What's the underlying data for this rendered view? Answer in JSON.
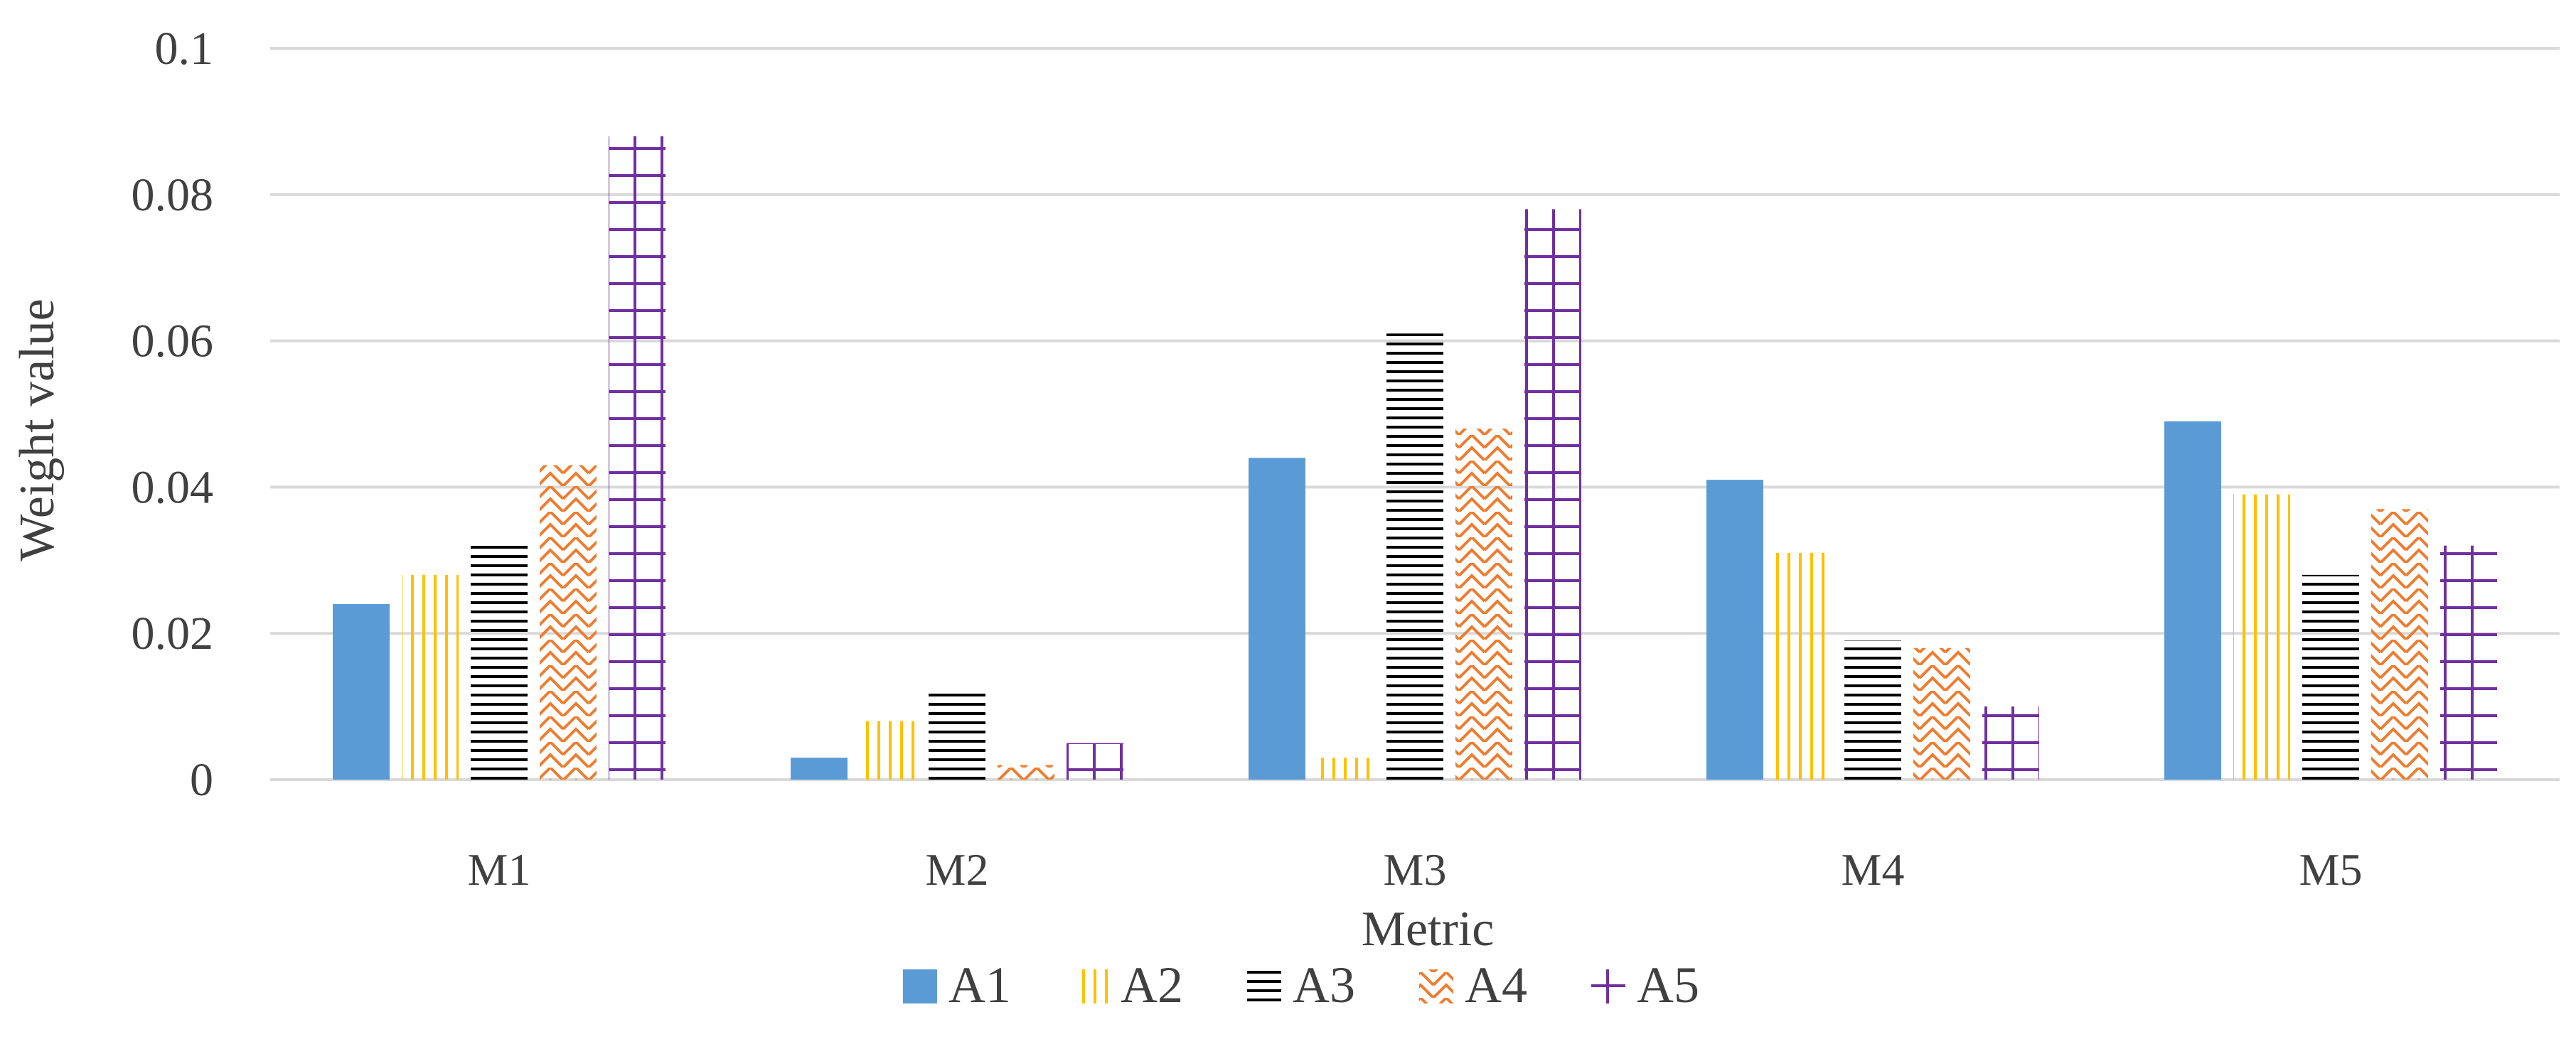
{
  "chart_data": {
    "type": "bar",
    "title": "",
    "xlabel": "Metric",
    "ylabel": "Weight value",
    "ylim": [
      0,
      0.1
    ],
    "yticks": [
      "0",
      "0.02",
      "0.04",
      "0.06",
      "0.08",
      "0.1"
    ],
    "ytick_values": [
      0,
      0.02,
      0.04,
      0.06,
      0.08,
      0.1
    ],
    "categories": [
      "M1",
      "M2",
      "M3",
      "M4",
      "M5"
    ],
    "grid": true,
    "legend_position": "bottom",
    "series": [
      {
        "name": "A1",
        "color": "#5B9BD5",
        "pattern": "solid",
        "values": [
          0.024,
          0.003,
          0.044,
          0.041,
          0.049
        ]
      },
      {
        "name": "A2",
        "color": "#FFC000",
        "pattern": "vertical",
        "values": [
          0.028,
          0.008,
          0.003,
          0.031,
          0.039
        ]
      },
      {
        "name": "A3",
        "color": "#000000",
        "pattern": "horizontal",
        "values": [
          0.032,
          0.012,
          0.061,
          0.019,
          0.028
        ]
      },
      {
        "name": "A4",
        "color": "#ED7D31",
        "pattern": "zigzag",
        "values": [
          0.043,
          0.002,
          0.048,
          0.018,
          0.037
        ]
      },
      {
        "name": "A5",
        "color": "#7030A0",
        "pattern": "cross",
        "values": [
          0.088,
          0.005,
          0.078,
          0.01,
          0.032
        ]
      }
    ]
  }
}
